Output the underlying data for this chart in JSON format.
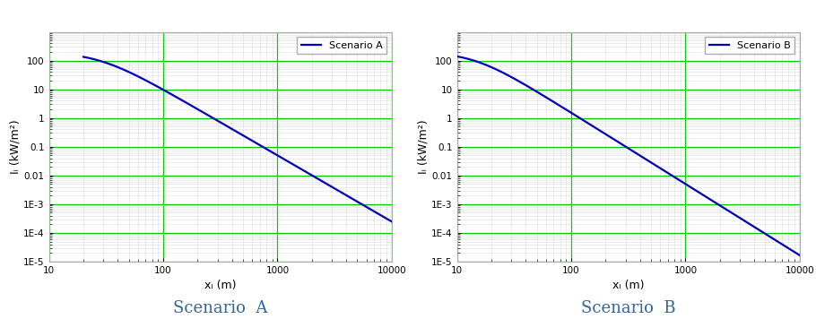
{
  "scenario_A": {
    "label": "Scenario A",
    "x_start": 20,
    "x_end": 10000,
    "A": 200.0,
    "r0": 30.0,
    "n": 2.5
  },
  "scenario_B": {
    "label": "Scenario B",
    "x_start": 10,
    "x_end": 10000,
    "A": 200.0,
    "r0": 15.0,
    "n": 2.5
  },
  "xlim_A": [
    10,
    10000
  ],
  "xlim_B": [
    10,
    10000
  ],
  "ylim": [
    1e-05,
    1000
  ],
  "xlabel": "xᵢ (m)",
  "ylabel_A": "Iᵢ (kW/m²)",
  "ylabel_B": "Iᵢ (kW/m²)",
  "yticks": [
    1e-05,
    0.0001,
    0.001,
    0.01,
    0.1,
    1.0,
    10.0,
    100.0
  ],
  "ytick_labels": [
    "1E-5",
    "1E-4",
    "1E-3",
    "0.01",
    "0.1",
    "1",
    "10",
    "100"
  ],
  "xticks": [
    10,
    100,
    1000,
    10000
  ],
  "xtick_labels": [
    "10",
    "100",
    "1000",
    "10000"
  ],
  "line_color": "#0000bb",
  "line_width": 1.6,
  "grid_major_color": "#00cc00",
  "grid_major_alpha": 1.0,
  "grid_major_lw": 0.9,
  "grid_minor_color": "#bbbbbb",
  "grid_minor_alpha": 0.5,
  "grid_minor_lw": 0.4,
  "title_A": "Scenario  A",
  "title_B": "Scenario  B",
  "title_color": "#336699",
  "title_fontsize": 13,
  "legend_fontsize": 8,
  "axis_label_fontsize": 9,
  "tick_fontsize": 7.5,
  "bg_color": "#ffffff",
  "fig_bg_color": "#ffffff",
  "spine_color": "#aaaaaa"
}
